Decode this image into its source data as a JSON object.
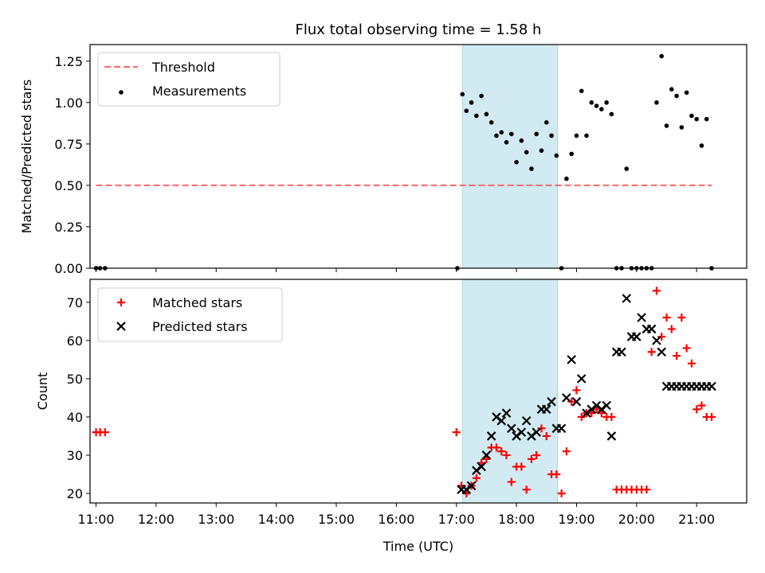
{
  "title": "Flux total observing time = 1.58 h",
  "colors": {
    "shade": "#add8e6",
    "threshold": "#ff6666",
    "measurement": "#000000",
    "matched": "#ff0000",
    "predicted": "#000000"
  },
  "chart_data": [
    {
      "type": "scatter",
      "panel": "top",
      "title": "Flux total observing time = 1.58 h",
      "xlabel": "",
      "ylabel": "Matched/Predicted stars",
      "xlim": [
        "10:54",
        "21:50"
      ],
      "ylim": [
        0,
        1.35
      ],
      "yticks": [
        "0.00",
        "0.25",
        "0.50",
        "0.75",
        "1.00",
        "1.25"
      ],
      "ytick_values": [
        0,
        0.25,
        0.5,
        0.75,
        1.0,
        1.25
      ],
      "shaded_interval": [
        "17:06",
        "18:41"
      ],
      "legend": "upper-left",
      "series": [
        {
          "name": "Threshold",
          "kind": "dashed-line",
          "x": [
            "11:00",
            "21:15"
          ],
          "y": [
            0.5,
            0.5
          ]
        },
        {
          "name": "Measurements",
          "kind": "points",
          "x": [
            "11:00",
            "11:04",
            "11:09",
            "17:01",
            "17:06",
            "17:10",
            "17:15",
            "17:20",
            "17:25",
            "17:30",
            "17:35",
            "17:40",
            "17:45",
            "17:50",
            "17:55",
            "18:00",
            "18:05",
            "18:10",
            "18:15",
            "18:20",
            "18:25",
            "18:30",
            "18:35",
            "18:40",
            "18:45",
            "18:50",
            "18:55",
            "19:00",
            "19:05",
            "19:10",
            "19:15",
            "19:20",
            "19:25",
            "19:30",
            "19:35",
            "19:40",
            "19:45",
            "19:50",
            "19:55",
            "20:00",
            "20:05",
            "20:10",
            "20:15",
            "20:20",
            "20:25",
            "20:30",
            "20:35",
            "20:40",
            "20:45",
            "20:50",
            "20:55",
            "21:00",
            "21:05",
            "21:10",
            "21:15"
          ],
          "y": [
            0,
            0,
            0,
            0,
            1.05,
            0.95,
            1.0,
            0.92,
            1.04,
            0.93,
            0.88,
            0.8,
            0.82,
            0.76,
            0.81,
            0.64,
            0.77,
            0.7,
            0.6,
            0.81,
            0.71,
            0.88,
            0.8,
            0.68,
            0.0,
            0.54,
            0.69,
            0.8,
            1.07,
            0.8,
            1.0,
            0.98,
            0.96,
            1.0,
            0.93,
            0.0,
            0.0,
            0.6,
            0.0,
            0.0,
            0.0,
            0.0,
            0.0,
            1.0,
            1.28,
            0.86,
            1.08,
            1.04,
            0.85,
            1.06,
            0.92,
            0.9,
            0.74,
            0.9,
            0.0
          ]
        }
      ]
    },
    {
      "type": "scatter",
      "panel": "bottom",
      "xlabel": "Time (UTC)",
      "ylabel": "Count",
      "xlim": [
        "10:54",
        "21:50"
      ],
      "xticks": [
        "11:00",
        "12:00",
        "13:00",
        "14:00",
        "15:00",
        "16:00",
        "17:00",
        "18:00",
        "19:00",
        "20:00",
        "21:00"
      ],
      "ylim": [
        17.5,
        76
      ],
      "yticks": [
        "20",
        "30",
        "40",
        "50",
        "60",
        "70"
      ],
      "ytick_values": [
        20,
        30,
        40,
        50,
        60,
        70
      ],
      "shaded_interval": [
        "17:06",
        "18:41"
      ],
      "legend": "upper-left",
      "series": [
        {
          "name": "Matched stars",
          "kind": "plus",
          "x": [
            "11:00",
            "11:04",
            "11:09",
            "17:00",
            "17:05",
            "17:10",
            "17:15",
            "17:20",
            "17:25",
            "17:30",
            "17:35",
            "17:40",
            "17:45",
            "17:50",
            "17:55",
            "18:00",
            "18:05",
            "18:10",
            "18:15",
            "18:20",
            "18:25",
            "18:30",
            "18:35",
            "18:40",
            "18:45",
            "18:50",
            "18:55",
            "19:00",
            "19:05",
            "19:10",
            "19:15",
            "19:20",
            "19:25",
            "19:30",
            "19:35",
            "19:40",
            "19:45",
            "19:50",
            "19:55",
            "20:00",
            "20:05",
            "20:10",
            "20:15",
            "20:20",
            "20:25",
            "20:30",
            "20:35",
            "20:40",
            "20:45",
            "20:50",
            "20:55",
            "21:00",
            "21:05",
            "21:10",
            "21:15"
          ],
          "y": [
            36,
            36,
            36,
            36,
            22,
            20,
            22,
            24,
            28,
            29,
            32,
            32,
            31,
            30,
            23,
            27,
            27,
            21,
            29,
            30,
            37,
            35,
            25,
            25,
            20,
            31,
            44,
            47,
            40,
            41,
            41,
            42,
            41,
            40,
            40,
            21,
            21,
            21,
            21,
            21,
            21,
            21,
            57,
            73,
            61,
            66,
            63,
            56,
            66,
            58,
            54,
            42,
            43,
            40,
            40
          ]
        },
        {
          "name": "Predicted stars",
          "kind": "x",
          "x": [
            "17:05",
            "17:10",
            "17:15",
            "17:20",
            "17:25",
            "17:30",
            "17:35",
            "17:40",
            "17:45",
            "17:50",
            "17:55",
            "18:00",
            "18:05",
            "18:10",
            "18:15",
            "18:20",
            "18:25",
            "18:30",
            "18:35",
            "18:40",
            "18:45",
            "18:50",
            "18:55",
            "19:00",
            "19:05",
            "19:10",
            "19:15",
            "19:20",
            "19:25",
            "19:30",
            "19:35",
            "19:40",
            "19:45",
            "19:50",
            "19:55",
            "20:00",
            "20:05",
            "20:10",
            "20:15",
            "20:20",
            "20:25",
            "20:30",
            "20:35",
            "20:40",
            "20:45",
            "20:50",
            "20:55",
            "21:00",
            "21:05",
            "21:10",
            "21:15"
          ],
          "y": [
            21,
            21,
            22,
            26,
            27,
            30,
            35,
            40,
            39,
            41,
            37,
            35,
            36,
            39,
            35,
            36,
            42,
            42,
            44,
            37,
            37,
            45,
            55,
            44,
            50,
            41,
            42,
            43,
            42,
            43,
            35,
            57,
            57,
            71,
            61,
            61,
            66,
            63,
            63,
            60,
            57,
            48,
            48,
            48,
            48,
            48,
            48,
            48,
            48,
            48,
            48
          ]
        }
      ]
    }
  ]
}
